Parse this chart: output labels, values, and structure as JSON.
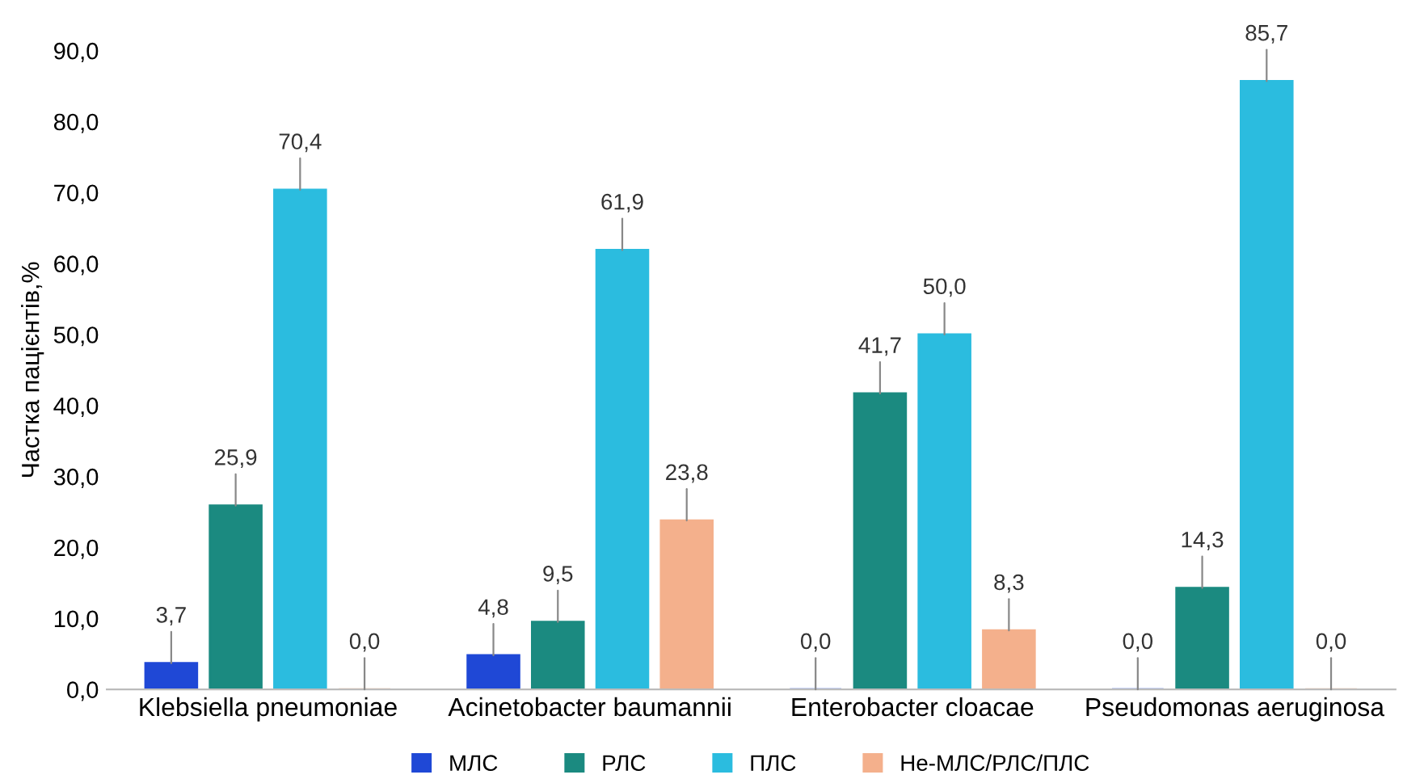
{
  "chart_data": {
    "type": "bar",
    "ylabel": "Частка пацієнтів,%",
    "categories": [
      "Klebsiella pneumoniae",
      "Acinetobacter baumannii",
      "Enterobacter cloacae",
      "Pseudomonas aeruginosa"
    ],
    "series": [
      {
        "name": "МЛС",
        "color": "#1f48d6",
        "values": [
          3.7,
          4.8,
          0.0,
          0.0
        ],
        "value_labels": [
          "3,7",
          "4,8",
          "0,0",
          "0,0"
        ]
      },
      {
        "name": "РЛС",
        "color": "#1b8a80",
        "values": [
          25.9,
          9.5,
          41.7,
          14.3
        ],
        "value_labels": [
          "25,9",
          "9,5",
          "41,7",
          "14,3"
        ]
      },
      {
        "name": "ПЛС",
        "color": "#2bbcdf",
        "values": [
          70.4,
          61.9,
          50.0,
          85.7
        ],
        "value_labels": [
          "70,4",
          "61,9",
          "50,0",
          "85,7"
        ]
      },
      {
        "name": "Не-МЛС/РЛС/ПЛС",
        "color": "#f4b08c",
        "values": [
          0.0,
          23.8,
          8.3,
          0.0
        ],
        "value_labels": [
          "0,0",
          "23,8",
          "8,3",
          "0,0"
        ]
      }
    ],
    "ylim": [
      0,
      90
    ],
    "yticks": [
      {
        "value": 0,
        "label": "0,0"
      },
      {
        "value": 10,
        "label": "10,0"
      },
      {
        "value": 20,
        "label": "20,0"
      },
      {
        "value": 30,
        "label": "30,0"
      },
      {
        "value": 40,
        "label": "40,0"
      },
      {
        "value": 50,
        "label": "50,0"
      },
      {
        "value": 60,
        "label": "60,0"
      },
      {
        "value": 70,
        "label": "70,0"
      },
      {
        "value": 80,
        "label": "80,0"
      },
      {
        "value": 90,
        "label": "90,0"
      }
    ],
    "grid": false,
    "legend": "bottom"
  }
}
